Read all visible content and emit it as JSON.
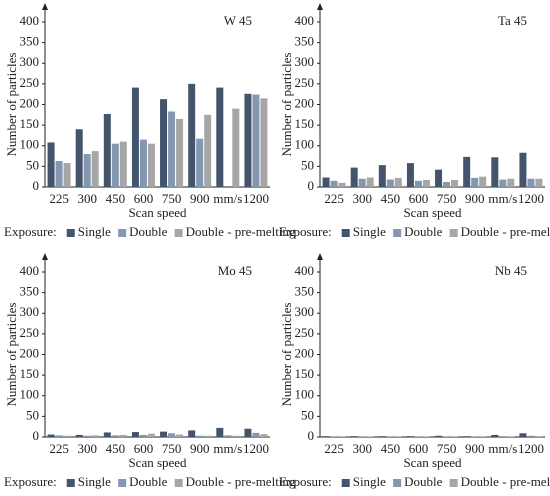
{
  "chart_data": [
    {
      "type": "bar",
      "title": "W 45",
      "x_label": "Scan speed",
      "y_label": "Number of particles",
      "categories": [
        "225",
        "300",
        "450",
        "600",
        "750",
        "900",
        "mm/s",
        "1200"
      ],
      "series": [
        {
          "name": "Single",
          "color": "#44546a",
          "values": [
            108,
            140,
            177,
            241,
            213,
            250,
            241,
            226
          ]
        },
        {
          "name": "Double",
          "color": "#8497b0",
          "values": [
            63,
            80,
            105,
            115,
            183,
            117,
            null,
            224
          ]
        },
        {
          "name": "Double - pre-melting",
          "color": "#a6a6a6",
          "values": [
            58,
            87,
            110,
            105,
            165,
            175,
            190,
            215
          ]
        }
      ],
      "legend_title": "Exposure:",
      "ylim": [
        0,
        400
      ],
      "yticks": [
        0,
        50,
        100,
        150,
        200,
        250,
        300,
        350,
        400
      ]
    },
    {
      "type": "bar",
      "title": "Ta 45",
      "x_label": "Scan speed",
      "y_label": "Number of particles",
      "categories": [
        "225",
        "300",
        "450",
        "600",
        "750",
        "900",
        "mm/s",
        "1200"
      ],
      "series": [
        {
          "name": "Single",
          "color": "#44546a",
          "values": [
            23,
            47,
            53,
            58,
            42,
            73,
            72,
            83
          ]
        },
        {
          "name": "Double",
          "color": "#8497b0",
          "values": [
            15,
            20,
            18,
            15,
            12,
            22,
            18,
            20
          ]
        },
        {
          "name": "Double - pre-melting",
          "color": "#a6a6a6",
          "values": [
            10,
            23,
            22,
            17,
            17,
            25,
            20,
            20
          ]
        }
      ],
      "legend_title": "Exposure:",
      "ylim": [
        0,
        400
      ],
      "yticks": [
        0,
        50,
        100,
        150,
        200,
        250,
        300,
        350,
        400
      ]
    },
    {
      "type": "bar",
      "title": "Mo 45",
      "x_label": "Scan speed",
      "y_label": "Number of particles",
      "categories": [
        "225",
        "300",
        "450",
        "600",
        "750",
        "900",
        "mm/s",
        "1200"
      ],
      "series": [
        {
          "name": "Single",
          "color": "#44546a",
          "values": [
            6,
            5,
            11,
            12,
            13,
            16,
            22,
            20
          ]
        },
        {
          "name": "Double",
          "color": "#8497b0",
          "values": [
            4,
            3,
            4,
            5,
            9,
            3,
            4,
            10
          ]
        },
        {
          "name": "Double - pre-melting",
          "color": "#a6a6a6",
          "values": [
            3,
            4,
            5,
            8,
            6,
            3,
            3,
            7
          ]
        }
      ],
      "legend_title": "Exposure:",
      "ylim": [
        0,
        400
      ],
      "yticks": [
        0,
        50,
        100,
        150,
        200,
        250,
        300,
        350,
        400
      ]
    },
    {
      "type": "bar",
      "title": "Nb 45",
      "x_label": "Scan speed",
      "y_label": "Number of particles",
      "categories": [
        "225",
        "300",
        "450",
        "600",
        "750",
        "900",
        "mm/s",
        "1200"
      ],
      "series": [
        {
          "name": "Single",
          "color": "#44546a",
          "values": [
            2,
            2,
            2,
            2,
            3,
            2,
            5,
            9
          ]
        },
        {
          "name": "Double",
          "color": "#8497b0",
          "values": [
            1,
            1,
            1,
            1,
            1,
            1,
            2,
            3
          ]
        },
        {
          "name": "Double - pre-melting",
          "color": "#a6a6a6",
          "values": [
            1,
            1,
            1,
            1,
            1,
            1,
            1,
            2
          ]
        }
      ],
      "legend_title": "Exposure:",
      "ylim": [
        0,
        400
      ],
      "yticks": [
        0,
        50,
        100,
        150,
        200,
        250,
        300,
        350,
        400
      ]
    }
  ]
}
